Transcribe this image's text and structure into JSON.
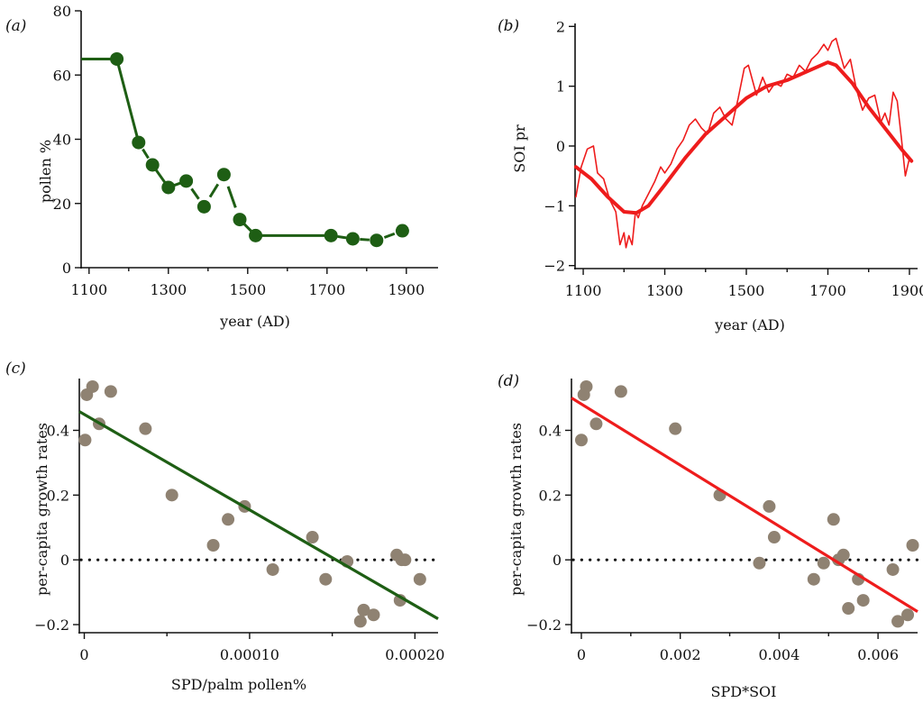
{
  "colors": {
    "green": "#1e5e14",
    "red": "#ee1c1c",
    "grey_point": "#8f8272",
    "axis": "#111111"
  },
  "chart_data": [
    {
      "panel": "(a)",
      "type": "line",
      "title": "",
      "xlabel": "year (AD)",
      "ylabel": "pollen %",
      "xlim": [
        1080,
        1980
      ],
      "ylim": [
        0,
        80
      ],
      "xticks": [
        1100,
        1300,
        1500,
        1700,
        1900
      ],
      "yticks": [
        0,
        20,
        40,
        60,
        80
      ],
      "xtick_labels": [
        "1100",
        "1300",
        "1500",
        "1700",
        "1900"
      ],
      "ytick_labels": [
        "0",
        "20",
        "40",
        "60",
        "80"
      ],
      "grid": false,
      "series": [
        {
          "color": "#1e5e14",
          "markers": true,
          "x": [
            1170,
            1225,
            1260,
            1300,
            1345,
            1390,
            1440,
            1480,
            1520,
            1710,
            1765,
            1825,
            1890
          ],
          "y": [
            65,
            39,
            32,
            25,
            27,
            19,
            29,
            15,
            10,
            10,
            9,
            8.5,
            11.5
          ]
        }
      ],
      "lead_segment": {
        "x": [
          1080,
          1170
        ],
        "y": [
          65,
          65
        ]
      },
      "line_gaps_after_index": [
        1,
        4,
        5,
        6,
        9,
        10,
        11
      ]
    },
    {
      "panel": "(b)",
      "type": "line",
      "title": "",
      "xlabel": "year (AD)",
      "ylabel": "SOI pr",
      "xlim": [
        1080,
        1920
      ],
      "ylim": [
        -2.05,
        2.05
      ],
      "xticks": [
        1100,
        1300,
        1500,
        1700,
        1900
      ],
      "yticks": [
        -2,
        -1,
        0,
        1,
        2
      ],
      "xtick_labels": [
        "1100",
        "1300",
        "1500",
        "1700",
        "1900"
      ],
      "ytick_labels": [
        "−2",
        "−1",
        "0",
        "1",
        "2"
      ],
      "grid": false,
      "series": [
        {
          "color": "#ee1c1c",
          "style": "thin",
          "x": [
            1082,
            1095,
            1110,
            1125,
            1135,
            1150,
            1165,
            1180,
            1190,
            1200,
            1205,
            1212,
            1220,
            1228,
            1235,
            1245,
            1260,
            1275,
            1290,
            1300,
            1315,
            1330,
            1345,
            1360,
            1375,
            1390,
            1405,
            1420,
            1435,
            1450,
            1465,
            1480,
            1495,
            1505,
            1515,
            1525,
            1540,
            1555,
            1570,
            1585,
            1600,
            1615,
            1630,
            1645,
            1660,
            1675,
            1690,
            1700,
            1710,
            1720,
            1730,
            1740,
            1755,
            1770,
            1785,
            1800,
            1815,
            1830,
            1840,
            1850,
            1860,
            1870,
            1880,
            1890,
            1900
          ],
          "y": [
            -0.85,
            -0.35,
            -0.05,
            0.0,
            -0.45,
            -0.55,
            -0.9,
            -1.1,
            -1.65,
            -1.45,
            -1.7,
            -1.5,
            -1.65,
            -1.1,
            -1.2,
            -1.0,
            -0.8,
            -0.6,
            -0.35,
            -0.45,
            -0.3,
            -0.05,
            0.1,
            0.35,
            0.45,
            0.3,
            0.2,
            0.55,
            0.65,
            0.45,
            0.35,
            0.8,
            1.3,
            1.35,
            1.1,
            0.85,
            1.15,
            0.9,
            1.05,
            1.0,
            1.2,
            1.15,
            1.35,
            1.25,
            1.45,
            1.55,
            1.7,
            1.6,
            1.75,
            1.8,
            1.55,
            1.3,
            1.45,
            0.95,
            0.6,
            0.8,
            0.85,
            0.4,
            0.55,
            0.35,
            0.9,
            0.75,
            0.15,
            -0.5,
            -0.2
          ]
        },
        {
          "color": "#ee1c1c",
          "style": "thick",
          "x": [
            1082,
            1120,
            1160,
            1200,
            1230,
            1260,
            1300,
            1350,
            1400,
            1450,
            1500,
            1550,
            1600,
            1650,
            1700,
            1720,
            1760,
            1800,
            1840,
            1880,
            1905
          ],
          "y": [
            -0.35,
            -0.55,
            -0.85,
            -1.1,
            -1.12,
            -1.0,
            -0.65,
            -0.2,
            0.2,
            0.5,
            0.8,
            1.0,
            1.1,
            1.25,
            1.4,
            1.35,
            1.05,
            0.65,
            0.3,
            -0.05,
            -0.25
          ]
        }
      ]
    },
    {
      "panel": "(c)",
      "type": "scatter",
      "title": "",
      "xlabel": "SPD/palm pollen%",
      "ylabel": "per-capita growth rates",
      "xlim": [
        -3e-06,
        0.000214
      ],
      "ylim": [
        -0.225,
        0.56
      ],
      "xticks": [
        0,
        0.0001,
        0.0002
      ],
      "yticks": [
        -0.2,
        0,
        0.2,
        0.4
      ],
      "xtick_labels": [
        "0",
        "0.00010",
        "0.00020"
      ],
      "ytick_labels": [
        "−0.2",
        "0",
        "0.2",
        "0.4"
      ],
      "grid": false,
      "zero_line": true,
      "fit_line": {
        "color": "#1e5e14",
        "x": [
          -3e-06,
          0.000214
        ],
        "y": [
          0.458,
          -0.182
        ]
      },
      "points": {
        "color": "#8f8272",
        "x": [
          5e-07,
          1.5e-06,
          5e-06,
          9e-06,
          1.6e-05,
          3.7e-05,
          5.3e-05,
          7.8e-05,
          8.7e-05,
          9.7e-05,
          0.000114,
          0.000138,
          0.000146,
          0.000159,
          0.000167,
          0.000169,
          0.000175,
          0.000189,
          0.000191,
          0.000192,
          0.000194,
          0.000203
        ],
        "y": [
          0.37,
          0.51,
          0.535,
          0.42,
          0.52,
          0.405,
          0.2,
          0.045,
          0.125,
          0.165,
          -0.03,
          0.07,
          -0.06,
          -0.005,
          -0.19,
          -0.155,
          -0.17,
          0.015,
          -0.125,
          0.0,
          0.0,
          -0.06
        ]
      }
    },
    {
      "panel": "(d)",
      "type": "scatter",
      "title": "",
      "xlabel": "SPD*SOI",
      "ylabel": "per-capita growth rates",
      "xlim": [
        -0.0002,
        0.0068
      ],
      "ylim": [
        -0.225,
        0.56
      ],
      "xticks": [
        0,
        0.002,
        0.004,
        0.006
      ],
      "yticks": [
        -0.2,
        0,
        0.2,
        0.4
      ],
      "xtick_labels": [
        "0",
        "0.002",
        "0.004",
        "0.006"
      ],
      "ytick_labels": [
        "−0.2",
        "0",
        "0.2",
        "0.4"
      ],
      "grid": false,
      "zero_line": true,
      "fit_line": {
        "color": "#ee1c1c",
        "x": [
          -0.0002,
          0.0068
        ],
        "y": [
          0.5,
          -0.16
        ]
      },
      "points": {
        "color": "#8f8272",
        "x": [
          0.0,
          5e-05,
          0.0001,
          0.0003,
          0.0008,
          0.0019,
          0.0028,
          0.0036,
          0.0038,
          0.0039,
          0.0047,
          0.0049,
          0.0051,
          0.0052,
          0.0053,
          0.0054,
          0.0056,
          0.0057,
          0.0063,
          0.0064,
          0.0066,
          0.0067
        ],
        "y": [
          0.37,
          0.51,
          0.535,
          0.42,
          0.52,
          0.405,
          0.2,
          -0.01,
          0.165,
          0.07,
          -0.06,
          -0.01,
          0.125,
          0.0,
          0.015,
          -0.15,
          -0.06,
          -0.125,
          -0.03,
          -0.19,
          -0.17,
          0.045
        ]
      }
    }
  ]
}
